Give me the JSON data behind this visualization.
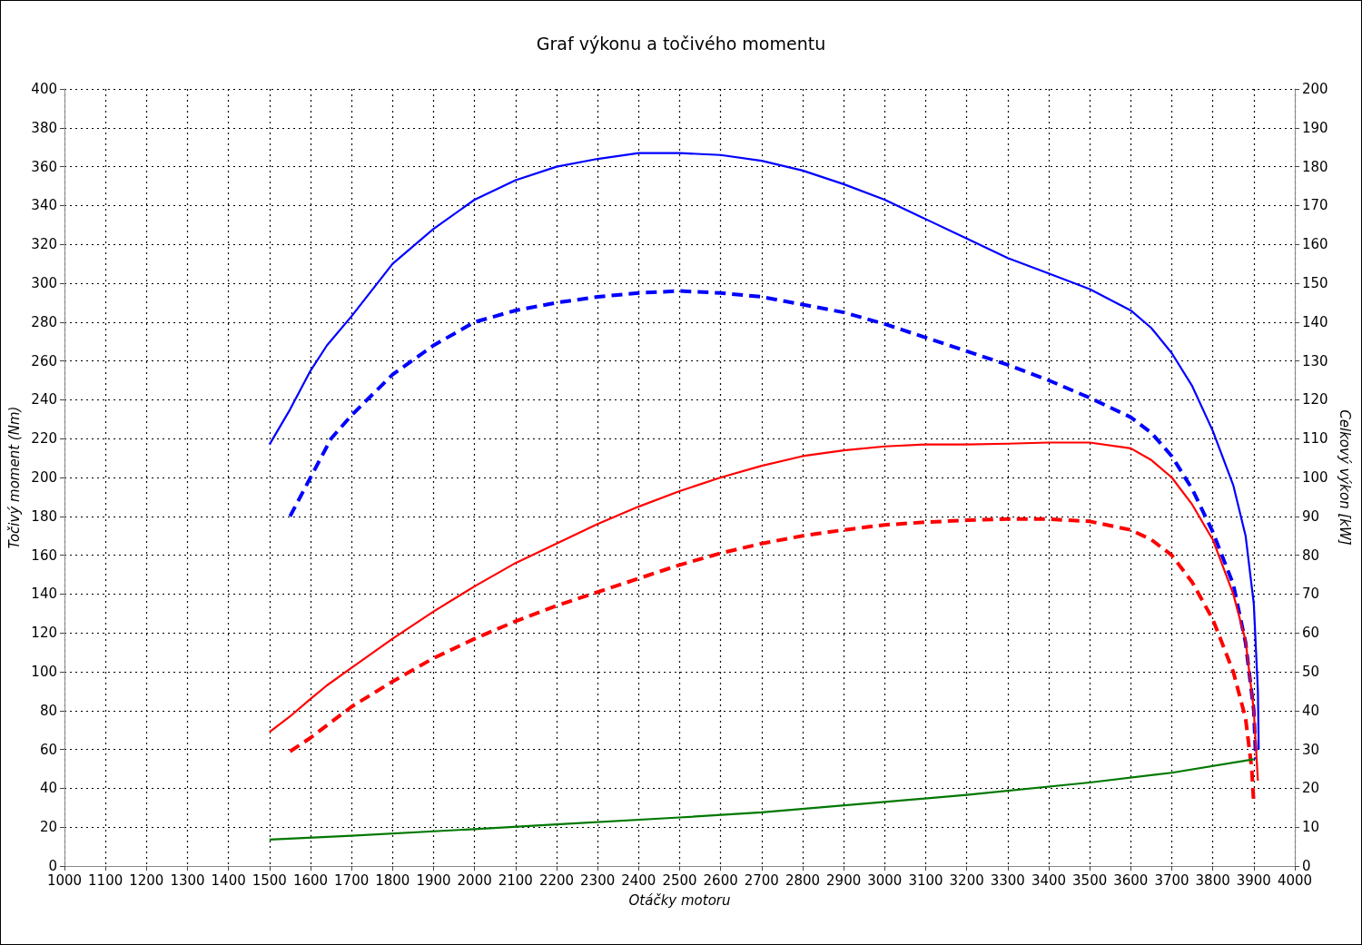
{
  "chart_data": {
    "type": "line",
    "title": "Graf výkonu a točivého momentu",
    "xlabel": "Otáčky motoru",
    "ylabel": "Točivý moment (Nm)",
    "y2label": "Celkový výkon [kW]",
    "xlim": [
      1000,
      4000
    ],
    "xticks": [
      1000,
      1100,
      1200,
      1300,
      1400,
      1500,
      1600,
      1700,
      1800,
      1900,
      2000,
      2100,
      2200,
      2300,
      2400,
      2500,
      2600,
      2700,
      2800,
      2900,
      3000,
      3100,
      3200,
      3300,
      3400,
      3500,
      3600,
      3700,
      3800,
      3900,
      4000
    ],
    "ylim": [
      0,
      400
    ],
    "yticks": [
      0,
      20,
      40,
      60,
      80,
      100,
      120,
      140,
      160,
      180,
      200,
      220,
      240,
      260,
      280,
      300,
      320,
      340,
      360,
      380,
      400
    ],
    "y2lim": [
      0,
      200
    ],
    "y2ticks": [
      0,
      10,
      20,
      30,
      40,
      50,
      60,
      70,
      80,
      90,
      100,
      110,
      120,
      130,
      140,
      150,
      160,
      170,
      180,
      190,
      200
    ],
    "grid": true,
    "marker": "none",
    "series": [
      {
        "color": "#0000ff",
        "line_style": "solid",
        "x": [
          1500,
          1550,
          1600,
          1640,
          1700,
          1800,
          1900,
          2000,
          2100,
          2200,
          2300,
          2400,
          2500,
          2600,
          2700,
          2800,
          2900,
          3000,
          3100,
          3200,
          3300,
          3400,
          3500,
          3600,
          3650,
          3700,
          3750,
          3800,
          3850,
          3880,
          3900,
          3910,
          3912
        ],
        "values": [
          217,
          235,
          255,
          268,
          283,
          310,
          328,
          343,
          353,
          360,
          364,
          367,
          367,
          366,
          363,
          358,
          351,
          343,
          333,
          323,
          313,
          305,
          297,
          286,
          277,
          264,
          247,
          224,
          196,
          170,
          135,
          90,
          60
        ]
      },
      {
        "color": "#0000ff",
        "line_style": "dashed",
        "x": [
          1550,
          1600,
          1650,
          1700,
          1800,
          1900,
          2000,
          2100,
          2200,
          2300,
          2400,
          2500,
          2600,
          2700,
          2800,
          2900,
          3000,
          3100,
          3200,
          3300,
          3400,
          3500,
          3600,
          3650,
          3700,
          3750,
          3800,
          3850,
          3880,
          3900,
          3905
        ],
        "values": [
          180,
          200,
          220,
          232,
          253,
          268,
          280,
          286,
          290,
          293,
          295,
          296,
          295,
          293,
          289,
          285,
          279,
          272,
          265,
          258,
          250,
          241,
          231,
          223,
          211,
          194,
          172,
          145,
          115,
          80,
          55
        ]
      },
      {
        "color": "#ff0000",
        "line_style": "solid",
        "axis": "y2",
        "x": [
          1500,
          1550,
          1600,
          1640,
          1700,
          1800,
          1900,
          2000,
          2100,
          2200,
          2300,
          2400,
          2500,
          2600,
          2700,
          2800,
          2900,
          3000,
          3100,
          3200,
          3300,
          3400,
          3500,
          3600,
          3650,
          3700,
          3750,
          3800,
          3850,
          3880,
          3900,
          3910
        ],
        "values": [
          34.5,
          38.5,
          43,
          46.5,
          51,
          58.5,
          65.5,
          72,
          78,
          83,
          88,
          92.5,
          96.5,
          100,
          103,
          105.5,
          107,
          108,
          108.5,
          108.5,
          108.7,
          109,
          109,
          107.5,
          104.5,
          100,
          93,
          84,
          70,
          58,
          40,
          22
        ]
      },
      {
        "color": "#ff0000",
        "line_style": "dashed",
        "axis": "y2",
        "x": [
          1550,
          1600,
          1700,
          1800,
          1900,
          2000,
          2100,
          2200,
          2300,
          2400,
          2500,
          2600,
          2700,
          2800,
          2900,
          3000,
          3100,
          3200,
          3300,
          3400,
          3500,
          3600,
          3650,
          3700,
          3750,
          3800,
          3850,
          3880,
          3895,
          3900
        ],
        "values": [
          29.5,
          33,
          41,
          47.5,
          53.5,
          58.5,
          63,
          67,
          70.5,
          74,
          77.5,
          80.5,
          83,
          85,
          86.5,
          87.8,
          88.5,
          89,
          89.3,
          89.3,
          88.7,
          86.5,
          84,
          80,
          73,
          63.5,
          50,
          38,
          25,
          16
        ]
      },
      {
        "color": "#007800",
        "line_style": "solid",
        "axis": "y2",
        "x": [
          1500,
          1700,
          2000,
          2200,
          2500,
          2700,
          3000,
          3200,
          3500,
          3700,
          3900
        ],
        "values": [
          6.8,
          7.8,
          9.5,
          10.7,
          12.5,
          13.8,
          16.5,
          18.3,
          21.5,
          24,
          27.5
        ]
      }
    ]
  }
}
